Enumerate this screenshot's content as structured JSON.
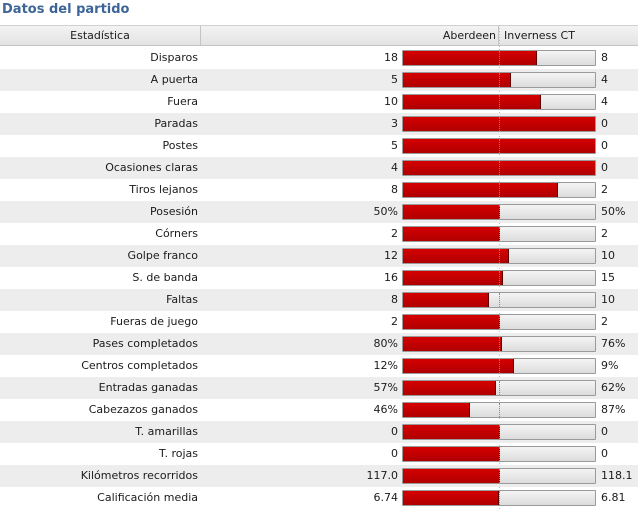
{
  "title": "Datos del partido",
  "header": {
    "stat_label": "Estadística",
    "home_team": "Aberdeen",
    "away_team": "Inverness CT"
  },
  "colors": {
    "home_bar": "#c80000",
    "away_bar": "#e6e6e6",
    "title": "#3d6597"
  },
  "rows": [
    {
      "label": "Disparos",
      "home": "18",
      "away": "8",
      "home_share": 0.692
    },
    {
      "label": "A puerta",
      "home": "5",
      "away": "4",
      "home_share": 0.556
    },
    {
      "label": "Fuera",
      "home": "10",
      "away": "4",
      "home_share": 0.714
    },
    {
      "label": "Paradas",
      "home": "3",
      "away": "0",
      "home_share": 1.0
    },
    {
      "label": "Postes",
      "home": "5",
      "away": "0",
      "home_share": 1.0
    },
    {
      "label": "Ocasiones claras",
      "home": "4",
      "away": "0",
      "home_share": 1.0
    },
    {
      "label": "Tiros lejanos",
      "home": "8",
      "away": "2",
      "home_share": 0.8
    },
    {
      "label": "Posesión",
      "home": "50%",
      "away": "50%",
      "home_share": 0.5
    },
    {
      "label": "Córners",
      "home": "2",
      "away": "2",
      "home_share": 0.5
    },
    {
      "label": "Golpe franco",
      "home": "12",
      "away": "10",
      "home_share": 0.545
    },
    {
      "label": "S. de banda",
      "home": "16",
      "away": "15",
      "home_share": 0.516
    },
    {
      "label": "Faltas",
      "home": "8",
      "away": "10",
      "home_share": 0.444
    },
    {
      "label": "Fueras de juego",
      "home": "2",
      "away": "2",
      "home_share": 0.5
    },
    {
      "label": "Pases completados",
      "home": "80%",
      "away": "76%",
      "home_share": 0.513
    },
    {
      "label": "Centros completados",
      "home": "12%",
      "away": "9%",
      "home_share": 0.571
    },
    {
      "label": "Entradas ganadas",
      "home": "57%",
      "away": "62%",
      "home_share": 0.479
    },
    {
      "label": "Cabezazos ganados",
      "home": "46%",
      "away": "87%",
      "home_share": 0.346
    },
    {
      "label": "T. amarillas",
      "home": "0",
      "away": "0",
      "home_share": 0.5
    },
    {
      "label": "T. rojas",
      "home": "0",
      "away": "0",
      "home_share": 0.5
    },
    {
      "label": "Kilómetros recorridos",
      "home": "117.0",
      "away": "118.1",
      "home_share": 0.498
    },
    {
      "label": "Calificación media",
      "home": "6.74",
      "away": "6.81",
      "home_share": 0.497
    }
  ]
}
